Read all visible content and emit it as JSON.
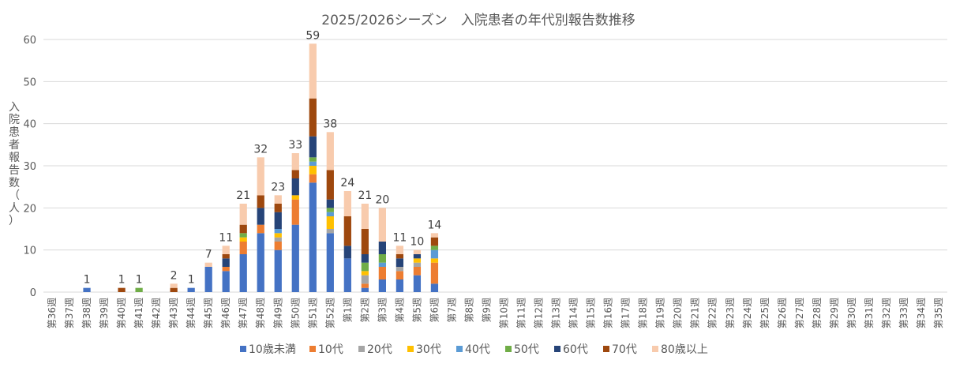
{
  "chart_data": {
    "type": "bar",
    "stacked": true,
    "title": "2025/2026シーズン　入院患者の年代別報告数推移",
    "xlabel": "",
    "ylabel": "入院患者報告数（人）",
    "ylim": [
      0,
      60
    ],
    "yticks": [
      0,
      10,
      20,
      30,
      40,
      50,
      60
    ],
    "grid": true,
    "legend_position": "bottom",
    "categories": [
      "第36週",
      "第37週",
      "第38週",
      "第39週",
      "第40週",
      "第41週",
      "第42週",
      "第43週",
      "第44週",
      "第45週",
      "第46週",
      "第47週",
      "第48週",
      "第49週",
      "第50週",
      "第51週",
      "第52週",
      "第1週",
      "第2週",
      "第3週",
      "第4週",
      "第5週",
      "第6週",
      "第7週",
      "第8週",
      "第9週",
      "第10週",
      "第11週",
      "第12週",
      "第13週",
      "第14週",
      "第15週",
      "第16週",
      "第17週",
      "第18週",
      "第19週",
      "第20週",
      "第21週",
      "第22週",
      "第23週",
      "第24週",
      "第25週",
      "第26週",
      "第27週",
      "第28週",
      "第29週",
      "第30週",
      "第31週",
      "第32週",
      "第33週",
      "第34週",
      "第35週"
    ],
    "series": [
      {
        "name": "10歳未満",
        "color": "#4472C4",
        "values": [
          0,
          0,
          1,
          0,
          0,
          0,
          0,
          0,
          1,
          6,
          5,
          9,
          14,
          10,
          16,
          26,
          14,
          8,
          1,
          3,
          3,
          4,
          2,
          0,
          0,
          0,
          0,
          0,
          0,
          0,
          0,
          0,
          0,
          0,
          0,
          0,
          0,
          0,
          0,
          0,
          0,
          0,
          0,
          0,
          0,
          0,
          0,
          0,
          0,
          0,
          0,
          0
        ]
      },
      {
        "name": "10代",
        "color": "#ED7D31",
        "values": [
          0,
          0,
          0,
          0,
          0,
          0,
          0,
          0,
          0,
          0,
          1,
          3,
          2,
          2,
          6,
          2,
          0,
          0,
          1,
          3,
          2,
          2,
          5,
          0,
          0,
          0,
          0,
          0,
          0,
          0,
          0,
          0,
          0,
          0,
          0,
          0,
          0,
          0,
          0,
          0,
          0,
          0,
          0,
          0,
          0,
          0,
          0,
          0,
          0,
          0,
          0,
          0
        ]
      },
      {
        "name": "20代",
        "color": "#A5A5A5",
        "values": [
          0,
          0,
          0,
          0,
          0,
          0,
          0,
          0,
          0,
          0,
          0,
          0,
          0,
          1,
          0,
          0,
          1,
          0,
          2,
          0,
          1,
          1,
          0,
          0,
          0,
          0,
          0,
          0,
          0,
          0,
          0,
          0,
          0,
          0,
          0,
          0,
          0,
          0,
          0,
          0,
          0,
          0,
          0,
          0,
          0,
          0,
          0,
          0,
          0,
          0,
          0,
          0
        ]
      },
      {
        "name": "30代",
        "color": "#FFC000",
        "values": [
          0,
          0,
          0,
          0,
          0,
          0,
          0,
          0,
          0,
          0,
          0,
          1,
          0,
          1,
          1,
          2,
          3,
          0,
          1,
          0,
          0,
          1,
          1,
          0,
          0,
          0,
          0,
          0,
          0,
          0,
          0,
          0,
          0,
          0,
          0,
          0,
          0,
          0,
          0,
          0,
          0,
          0,
          0,
          0,
          0,
          0,
          0,
          0,
          0,
          0,
          0,
          0
        ]
      },
      {
        "name": "40代",
        "color": "#5B9BD5",
        "values": [
          0,
          0,
          0,
          0,
          0,
          0,
          0,
          0,
          0,
          0,
          0,
          0,
          0,
          1,
          0,
          1,
          1,
          0,
          0,
          1,
          0,
          0,
          2,
          0,
          0,
          0,
          0,
          0,
          0,
          0,
          0,
          0,
          0,
          0,
          0,
          0,
          0,
          0,
          0,
          0,
          0,
          0,
          0,
          0,
          0,
          0,
          0,
          0,
          0,
          0,
          0,
          0
        ]
      },
      {
        "name": "50代",
        "color": "#70AD47",
        "values": [
          0,
          0,
          0,
          0,
          0,
          1,
          0,
          0,
          0,
          0,
          0,
          1,
          0,
          0,
          0,
          1,
          1,
          0,
          2,
          2,
          0,
          0,
          1,
          0,
          0,
          0,
          0,
          0,
          0,
          0,
          0,
          0,
          0,
          0,
          0,
          0,
          0,
          0,
          0,
          0,
          0,
          0,
          0,
          0,
          0,
          0,
          0,
          0,
          0,
          0,
          0,
          0
        ]
      },
      {
        "name": "60代",
        "color": "#264478",
        "values": [
          0,
          0,
          0,
          0,
          0,
          0,
          0,
          0,
          0,
          0,
          2,
          0,
          4,
          4,
          4,
          5,
          2,
          3,
          2,
          3,
          2,
          1,
          0,
          0,
          0,
          0,
          0,
          0,
          0,
          0,
          0,
          0,
          0,
          0,
          0,
          0,
          0,
          0,
          0,
          0,
          0,
          0,
          0,
          0,
          0,
          0,
          0,
          0,
          0,
          0,
          0,
          0
        ]
      },
      {
        "name": "70代",
        "color": "#9E480E",
        "values": [
          0,
          0,
          0,
          0,
          1,
          0,
          0,
          1,
          0,
          0,
          1,
          2,
          3,
          2,
          2,
          9,
          7,
          7,
          6,
          0,
          1,
          0,
          2,
          0,
          0,
          0,
          0,
          0,
          0,
          0,
          0,
          0,
          0,
          0,
          0,
          0,
          0,
          0,
          0,
          0,
          0,
          0,
          0,
          0,
          0,
          0,
          0,
          0,
          0,
          0,
          0,
          0
        ]
      },
      {
        "name": "80歳以上",
        "color": "#F8CBAD",
        "values": [
          0,
          0,
          0,
          0,
          0,
          0,
          0,
          1,
          0,
          1,
          2,
          5,
          9,
          2,
          4,
          13,
          9,
          6,
          6,
          8,
          2,
          1,
          1,
          0,
          0,
          0,
          0,
          0,
          0,
          0,
          0,
          0,
          0,
          0,
          0,
          0,
          0,
          0,
          0,
          0,
          0,
          0,
          0,
          0,
          0,
          0,
          0,
          0,
          0,
          0,
          0,
          0
        ]
      }
    ],
    "totals": [
      null,
      null,
      1,
      null,
      1,
      1,
      null,
      2,
      1,
      7,
      11,
      21,
      32,
      23,
      33,
      59,
      38,
      24,
      21,
      20,
      11,
      10,
      14,
      null,
      null,
      null,
      null,
      null,
      null,
      null,
      null,
      null,
      null,
      null,
      null,
      null,
      null,
      null,
      null,
      null,
      null,
      null,
      null,
      null,
      null,
      null,
      null,
      null,
      null,
      null,
      null,
      null
    ]
  }
}
